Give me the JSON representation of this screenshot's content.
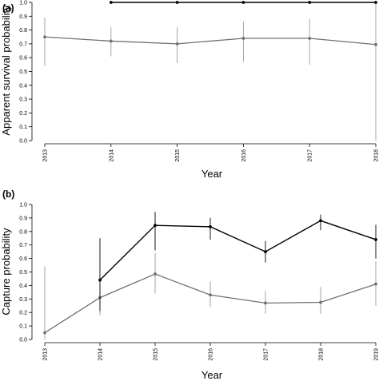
{
  "colors": {
    "dark": "#000000",
    "gray": "#707070",
    "errorbar": "#9a9a9a",
    "axis": "#000000"
  },
  "chart_data": [
    {
      "type": "line",
      "panel_label": "(a)",
      "xlabel": "Year",
      "ylabel": "Apparent survival probability",
      "ylim": [
        0,
        1.0
      ],
      "yticks": [
        "0.0",
        "0.1",
        "0.2",
        "0.3",
        "0.4",
        "0.5",
        "0.6",
        "0.7",
        "0.8",
        "0.9",
        "1.0"
      ],
      "categories": [
        "2013",
        "2014",
        "2015",
        "2016",
        "2017",
        "2018"
      ],
      "series": [
        {
          "color": "#000000",
          "values": [
            null,
            1.0,
            1.0,
            1.0,
            1.0,
            1.0
          ],
          "lower": [
            null,
            null,
            null,
            null,
            null,
            null
          ],
          "upper": [
            null,
            null,
            null,
            null,
            null,
            null
          ]
        },
        {
          "color": "#707070",
          "values": [
            0.75,
            0.72,
            0.7,
            0.74,
            0.74,
            0.695
          ],
          "lower": [
            0.54,
            0.61,
            0.56,
            0.57,
            0.55,
            0.0
          ],
          "upper": [
            0.89,
            0.82,
            0.82,
            0.86,
            0.88,
            1.0
          ]
        }
      ]
    },
    {
      "type": "line",
      "panel_label": "(b)",
      "xlabel": "Year",
      "ylabel": "Capture probability",
      "ylim": [
        0,
        1.0
      ],
      "yticks": [
        "0.0",
        "0.1",
        "0.2",
        "0.3",
        "0.4",
        "0.5",
        "0.6",
        "0.7",
        "0.8",
        "0.9",
        "1.0"
      ],
      "categories": [
        "2013",
        "2014",
        "2015",
        "2016",
        "2017",
        "2018",
        "2019"
      ],
      "series": [
        {
          "color": "#000000",
          "values": [
            null,
            0.44,
            0.845,
            0.835,
            0.65,
            0.88,
            0.74
          ],
          "lower": [
            null,
            0.21,
            0.66,
            0.74,
            0.57,
            0.81,
            0.6
          ],
          "upper": [
            null,
            0.75,
            0.945,
            0.9,
            0.73,
            0.925,
            0.85
          ]
        },
        {
          "color": "#707070",
          "values": [
            0.05,
            0.31,
            0.485,
            0.33,
            0.27,
            0.275,
            0.41
          ],
          "lower": [
            0.0,
            0.18,
            0.34,
            0.24,
            0.19,
            0.19,
            0.25
          ],
          "upper": [
            0.54,
            0.46,
            0.64,
            0.43,
            0.36,
            0.39,
            0.58
          ]
        }
      ]
    }
  ]
}
